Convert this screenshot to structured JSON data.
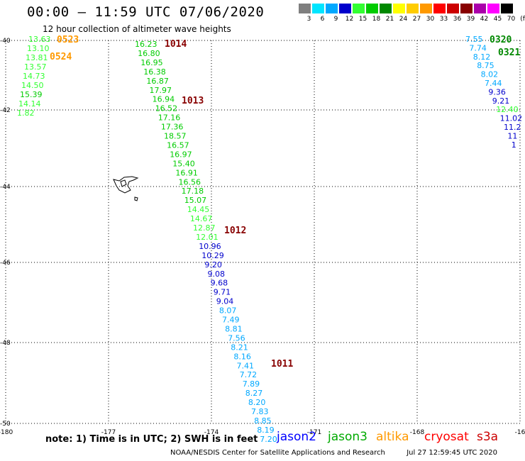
{
  "title": "00:00 — 11:59 UTC 07/06/2020",
  "subtitle": "12 hour collection of altimeter wave heights",
  "legend": {
    "unit": "(ft)",
    "bins": [
      {
        "label": "3",
        "color": "#7f7f7f"
      },
      {
        "label": "6",
        "color": "#00e5ff"
      },
      {
        "label": "9",
        "color": "#00a8ff"
      },
      {
        "label": "12",
        "color": "#0000cc"
      },
      {
        "label": "15",
        "color": "#33ff33"
      },
      {
        "label": "18",
        "color": "#00cc00"
      },
      {
        "label": "21",
        "color": "#008800"
      },
      {
        "label": "24",
        "color": "#ffff00"
      },
      {
        "label": "27",
        "color": "#ffcc00"
      },
      {
        "label": "30",
        "color": "#ff9900"
      },
      {
        "label": "33",
        "color": "#ff0000"
      },
      {
        "label": "36",
        "color": "#cc0000"
      },
      {
        "label": "39",
        "color": "#880000"
      },
      {
        "label": "42",
        "color": "#aa00aa"
      },
      {
        "label": "45",
        "color": "#ff00ff"
      },
      {
        "label": "70",
        "color": "#000000"
      }
    ]
  },
  "axes": {
    "lon_labels": [
      "-180",
      "-177",
      "-174",
      "-171",
      "-168",
      "-16"
    ],
    "lat_labels": [
      "-40",
      "-42",
      "-44",
      "-46",
      "-48",
      "-50"
    ]
  },
  "pass_labels": [
    {
      "text": "0523",
      "color": "#ff9900"
    },
    {
      "text": "0524",
      "color": "#ff9900"
    },
    {
      "text": "1014",
      "color": "#880000"
    },
    {
      "text": "1013",
      "color": "#880000"
    },
    {
      "text": "1012",
      "color": "#880000"
    },
    {
      "text": "1011",
      "color": "#880000"
    },
    {
      "text": "0320",
      "color": "#008800"
    },
    {
      "text": "0321",
      "color": "#008800"
    }
  ],
  "tracks": {
    "left_edge": {
      "values": [
        "13.63",
        "13.10",
        "13.81",
        "13.57",
        "14.73",
        "14.50",
        "15.39",
        "14.14",
        "1.82"
      ],
      "colors": [
        "#33ff33",
        "#33ff33",
        "#33ff33",
        "#33ff33",
        "#33ff33",
        "#33ff33",
        "#00cc00",
        "#33ff33",
        "#33ff33"
      ]
    },
    "main": {
      "values": [
        "16.23",
        "16.80",
        "16.95",
        "16.38",
        "16.87",
        "17.97",
        "16.94",
        "16.52",
        "17.16",
        "17.36",
        "18.57",
        "16.57",
        "16.97",
        "15.40",
        "16.91",
        "16.56",
        "17.18",
        "15.07",
        "14.45",
        "14.67",
        "12.87",
        "12.01",
        "10.96",
        "10.29",
        "9.20",
        "9.08",
        "9.68",
        "9.71",
        "9.04",
        "8.07",
        "7.49",
        "8.81",
        "7.56",
        "8.21",
        "8.16",
        "7.41",
        "7.72",
        "7.89",
        "8.27",
        "8.20",
        "7.83",
        "8.85",
        "8.19",
        "7.20"
      ],
      "colors": [
        "#00cc00",
        "#00cc00",
        "#00cc00",
        "#00cc00",
        "#00cc00",
        "#00cc00",
        "#00cc00",
        "#00cc00",
        "#00cc00",
        "#00cc00",
        "#00cc00",
        "#00cc00",
        "#00cc00",
        "#00cc00",
        "#00cc00",
        "#00cc00",
        "#00cc00",
        "#00cc00",
        "#33ff33",
        "#33ff33",
        "#33ff33",
        "#33ff33",
        "#0000cc",
        "#0000cc",
        "#0000cc",
        "#0000cc",
        "#0000cc",
        "#0000cc",
        "#0000cc",
        "#00a8ff",
        "#00a8ff",
        "#00a8ff",
        "#00a8ff",
        "#00a8ff",
        "#00a8ff",
        "#00a8ff",
        "#00a8ff",
        "#00a8ff",
        "#00a8ff",
        "#00a8ff",
        "#00a8ff",
        "#00a8ff",
        "#00a8ff",
        "#00a8ff"
      ]
    },
    "right_edge": {
      "values": [
        "7.55",
        "7.74",
        "8.12",
        "8.75",
        "8.02",
        "7.44",
        "9.36",
        "9.21",
        "12.40",
        "11.02",
        "11.2",
        "11",
        "1"
      ],
      "colors": [
        "#00a8ff",
        "#00a8ff",
        "#00a8ff",
        "#00a8ff",
        "#00a8ff",
        "#00a8ff",
        "#0000cc",
        "#0000cc",
        "#33ff33",
        "#0000cc",
        "#0000cc",
        "#0000cc",
        "#0000cc"
      ]
    }
  },
  "note": "note:  1) Time is in UTC;  2) SWH is in feet",
  "satellites": [
    {
      "name": "jason2",
      "color": "#0000ff"
    },
    {
      "name": "jason3",
      "color": "#00aa00"
    },
    {
      "name": "altika",
      "color": "#ff9900"
    },
    {
      "name": "cryosat",
      "color": "#ff0000"
    },
    {
      "name": "s3a",
      "color": "#cc0000"
    }
  ],
  "footer_left": "NOAA/NESDIS Center for Satellite Applications and Research",
  "footer_right": "Jul 27 12:59:45 UTC 2020"
}
